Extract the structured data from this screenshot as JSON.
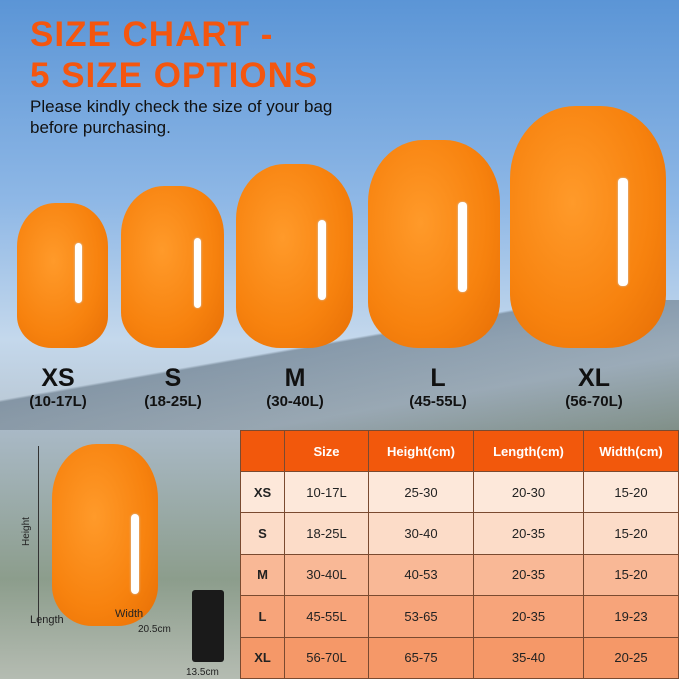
{
  "title": [
    "SIZE CHART -",
    "5 SIZE OPTIONS"
  ],
  "subtitle": [
    "Please kindly check the size of your bag",
    "before purchasing."
  ],
  "sizes": [
    {
      "name": "XS",
      "volume": "(10-17L)"
    },
    {
      "name": "S",
      "volume": "(18-25L)"
    },
    {
      "name": "M",
      "volume": "(30-40L)"
    },
    {
      "name": "L",
      "volume": "(45-55L)"
    },
    {
      "name": "XL",
      "volume": "(56-70L)"
    }
  ],
  "diagram": {
    "height": "Height",
    "length": "Length",
    "width": "Width",
    "pouch_height": "20.5cm",
    "pouch_width": "13.5cm"
  },
  "table": {
    "headers": [
      "",
      "Size",
      "Height(cm)",
      "Length(cm)",
      "Width(cm)"
    ],
    "rows": [
      [
        "XS",
        "10-17L",
        "25-30",
        "20-30",
        "15-20"
      ],
      [
        "S",
        "18-25L",
        "30-40",
        "20-35",
        "15-20"
      ],
      [
        "M",
        "30-40L",
        "40-53",
        "20-35",
        "15-20"
      ],
      [
        "L",
        "45-55L",
        "53-65",
        "20-35",
        "19-23"
      ],
      [
        "XL",
        "56-70L",
        "65-75",
        "35-40",
        "20-25"
      ]
    ]
  },
  "colors": {
    "accent": "#f4560f",
    "bag": "#f7820e",
    "header": "#f2580c"
  }
}
